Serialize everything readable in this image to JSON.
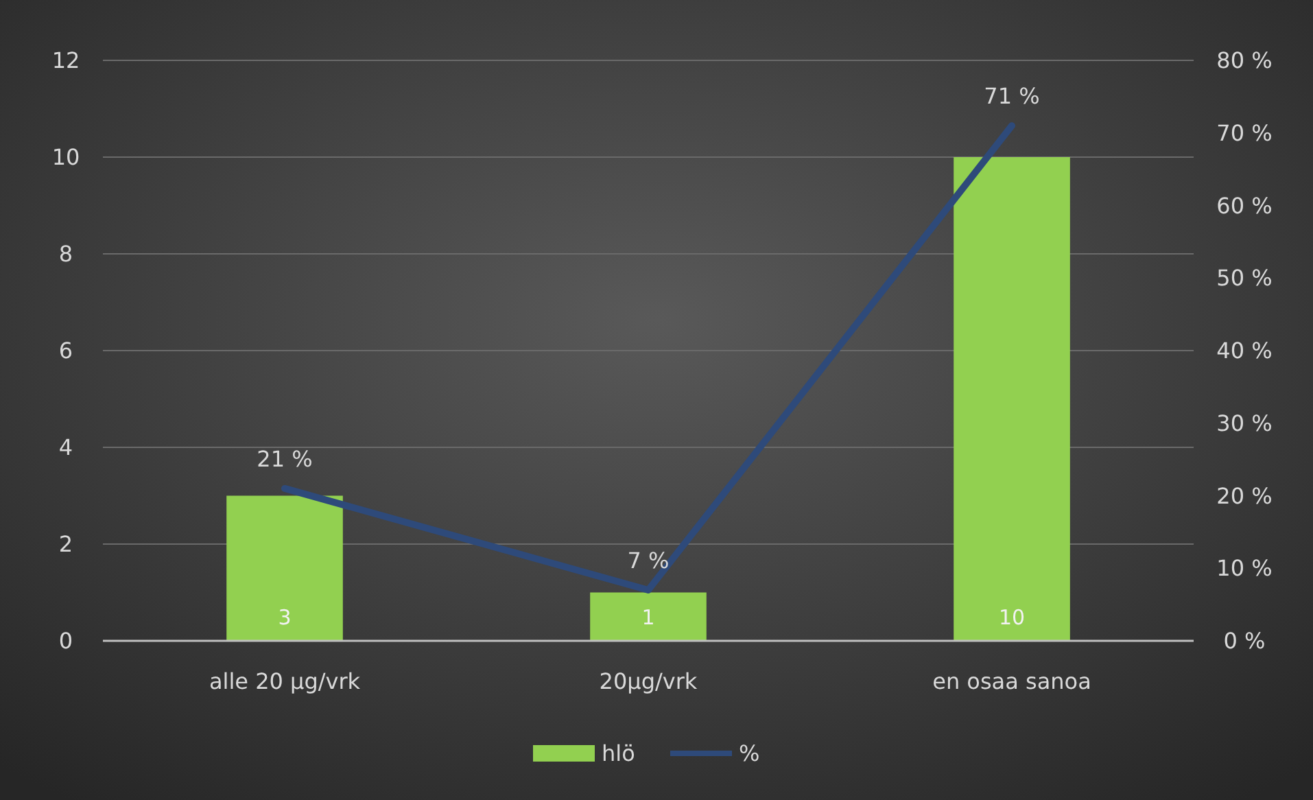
{
  "chart_data": {
    "type": "bar",
    "categories": [
      "alle 20 µg/vrk",
      "20µg/vrk",
      "en osaa sanoa"
    ],
    "series": [
      {
        "name": "hlö",
        "color": "#92d050",
        "values": [
          3,
          1,
          10
        ],
        "value_labels": [
          "3",
          "1",
          "10"
        ]
      },
      {
        "name": "%",
        "type": "line",
        "axis": "y2",
        "color": "#2e4a7a",
        "values": [
          21,
          7,
          71
        ],
        "value_labels": [
          "21 %",
          "7 %",
          "71 %"
        ]
      }
    ],
    "ylim": [
      0,
      12
    ],
    "yticks": [
      0,
      2,
      4,
      6,
      8,
      10,
      12
    ],
    "y2lim": [
      0,
      80
    ],
    "y2ticks": [
      {
        "value": 0,
        "label": "0 %"
      },
      {
        "value": 10,
        "label": "10 %"
      },
      {
        "value": 20,
        "label": "20 %"
      },
      {
        "value": 30,
        "label": "30 %"
      },
      {
        "value": 40,
        "label": "40 %"
      },
      {
        "value": 50,
        "label": "50 %"
      },
      {
        "value": 60,
        "label": "60 %"
      },
      {
        "value": 70,
        "label": "70 %"
      },
      {
        "value": 80,
        "label": "80 %"
      }
    ],
    "grid": "y",
    "legend": "bottom",
    "marker": "none"
  }
}
